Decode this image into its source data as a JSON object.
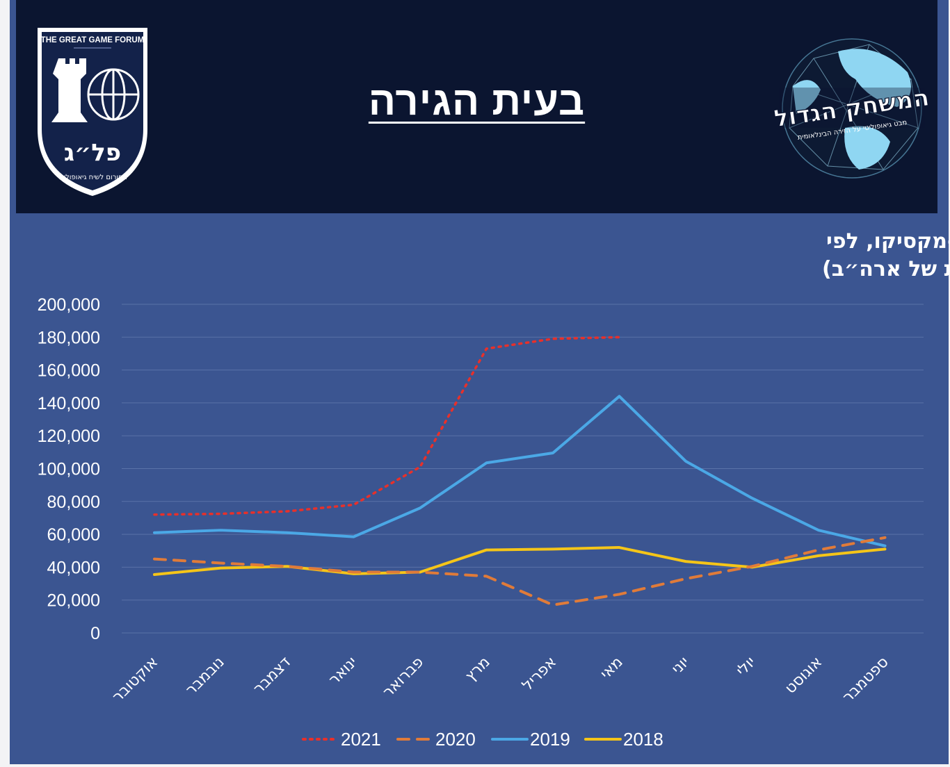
{
  "header": {
    "title": "בעית הגירה",
    "logo_left": {
      "top_text": "THE GREAT GAME FORUM",
      "name": "פל״ג",
      "subtitle": "הפורום לשיח גיאופוליטי",
      "icon": "rook-globe-icon"
    },
    "logo_right": {
      "name": "המשחק הגדול",
      "subtitle": "מבט גיאופוליטי על הזירה הבינלאומית",
      "icon": "globe-network-icon"
    }
  },
  "chart_data": {
    "type": "line",
    "title_lines": [
      "מספר מהגרים בלתי חוקיים שנעצרו בגבול ארה״ב-מקסיקו, לפי",
      "חודש (מקור נתונים: סוכנות המכס והגנת הגבולות של ארה״ב)"
    ],
    "categories": [
      "אוקטובר",
      "נובמבר",
      "דצמבר",
      "ינואר",
      "פברואר",
      "מרץ",
      "אפריל",
      "מאי",
      "יוני",
      "יולי",
      "אוגוסט",
      "ספטמבר"
    ],
    "ylim": [
      0,
      200000
    ],
    "y_ticks": [
      0,
      20000,
      40000,
      60000,
      80000,
      100000,
      120000,
      140000,
      160000,
      180000,
      200000
    ],
    "y_tick_labels": [
      "0",
      "20,000",
      "40,000",
      "60,000",
      "80,000",
      "100,000",
      "120,000",
      "140,000",
      "160,000",
      "180,000",
      "200,000"
    ],
    "grid": true,
    "legend_position": "bottom",
    "series": [
      {
        "name": "2021",
        "color": "#e8302a",
        "style": "dotted",
        "values": [
          72000,
          72500,
          74000,
          78000,
          101000,
          173000,
          179000,
          180000,
          null,
          null,
          null,
          null
        ]
      },
      {
        "name": "2020",
        "color": "#e07b39",
        "style": "dashed",
        "values": [
          45000,
          42500,
          40500,
          37000,
          37000,
          34500,
          17000,
          23500,
          33000,
          40500,
          50500,
          58000
        ]
      },
      {
        "name": "2019",
        "color": "#4ba8e6",
        "style": "solid",
        "values": [
          61000,
          62500,
          61000,
          58500,
          76000,
          103500,
          109500,
          144000,
          104500,
          82000,
          62500,
          53000
        ]
      },
      {
        "name": "2018",
        "color": "#f5c518",
        "style": "solid",
        "values": [
          35500,
          39500,
          40500,
          36000,
          37000,
          50500,
          51000,
          52000,
          43500,
          40000,
          47000,
          51000
        ]
      }
    ]
  }
}
